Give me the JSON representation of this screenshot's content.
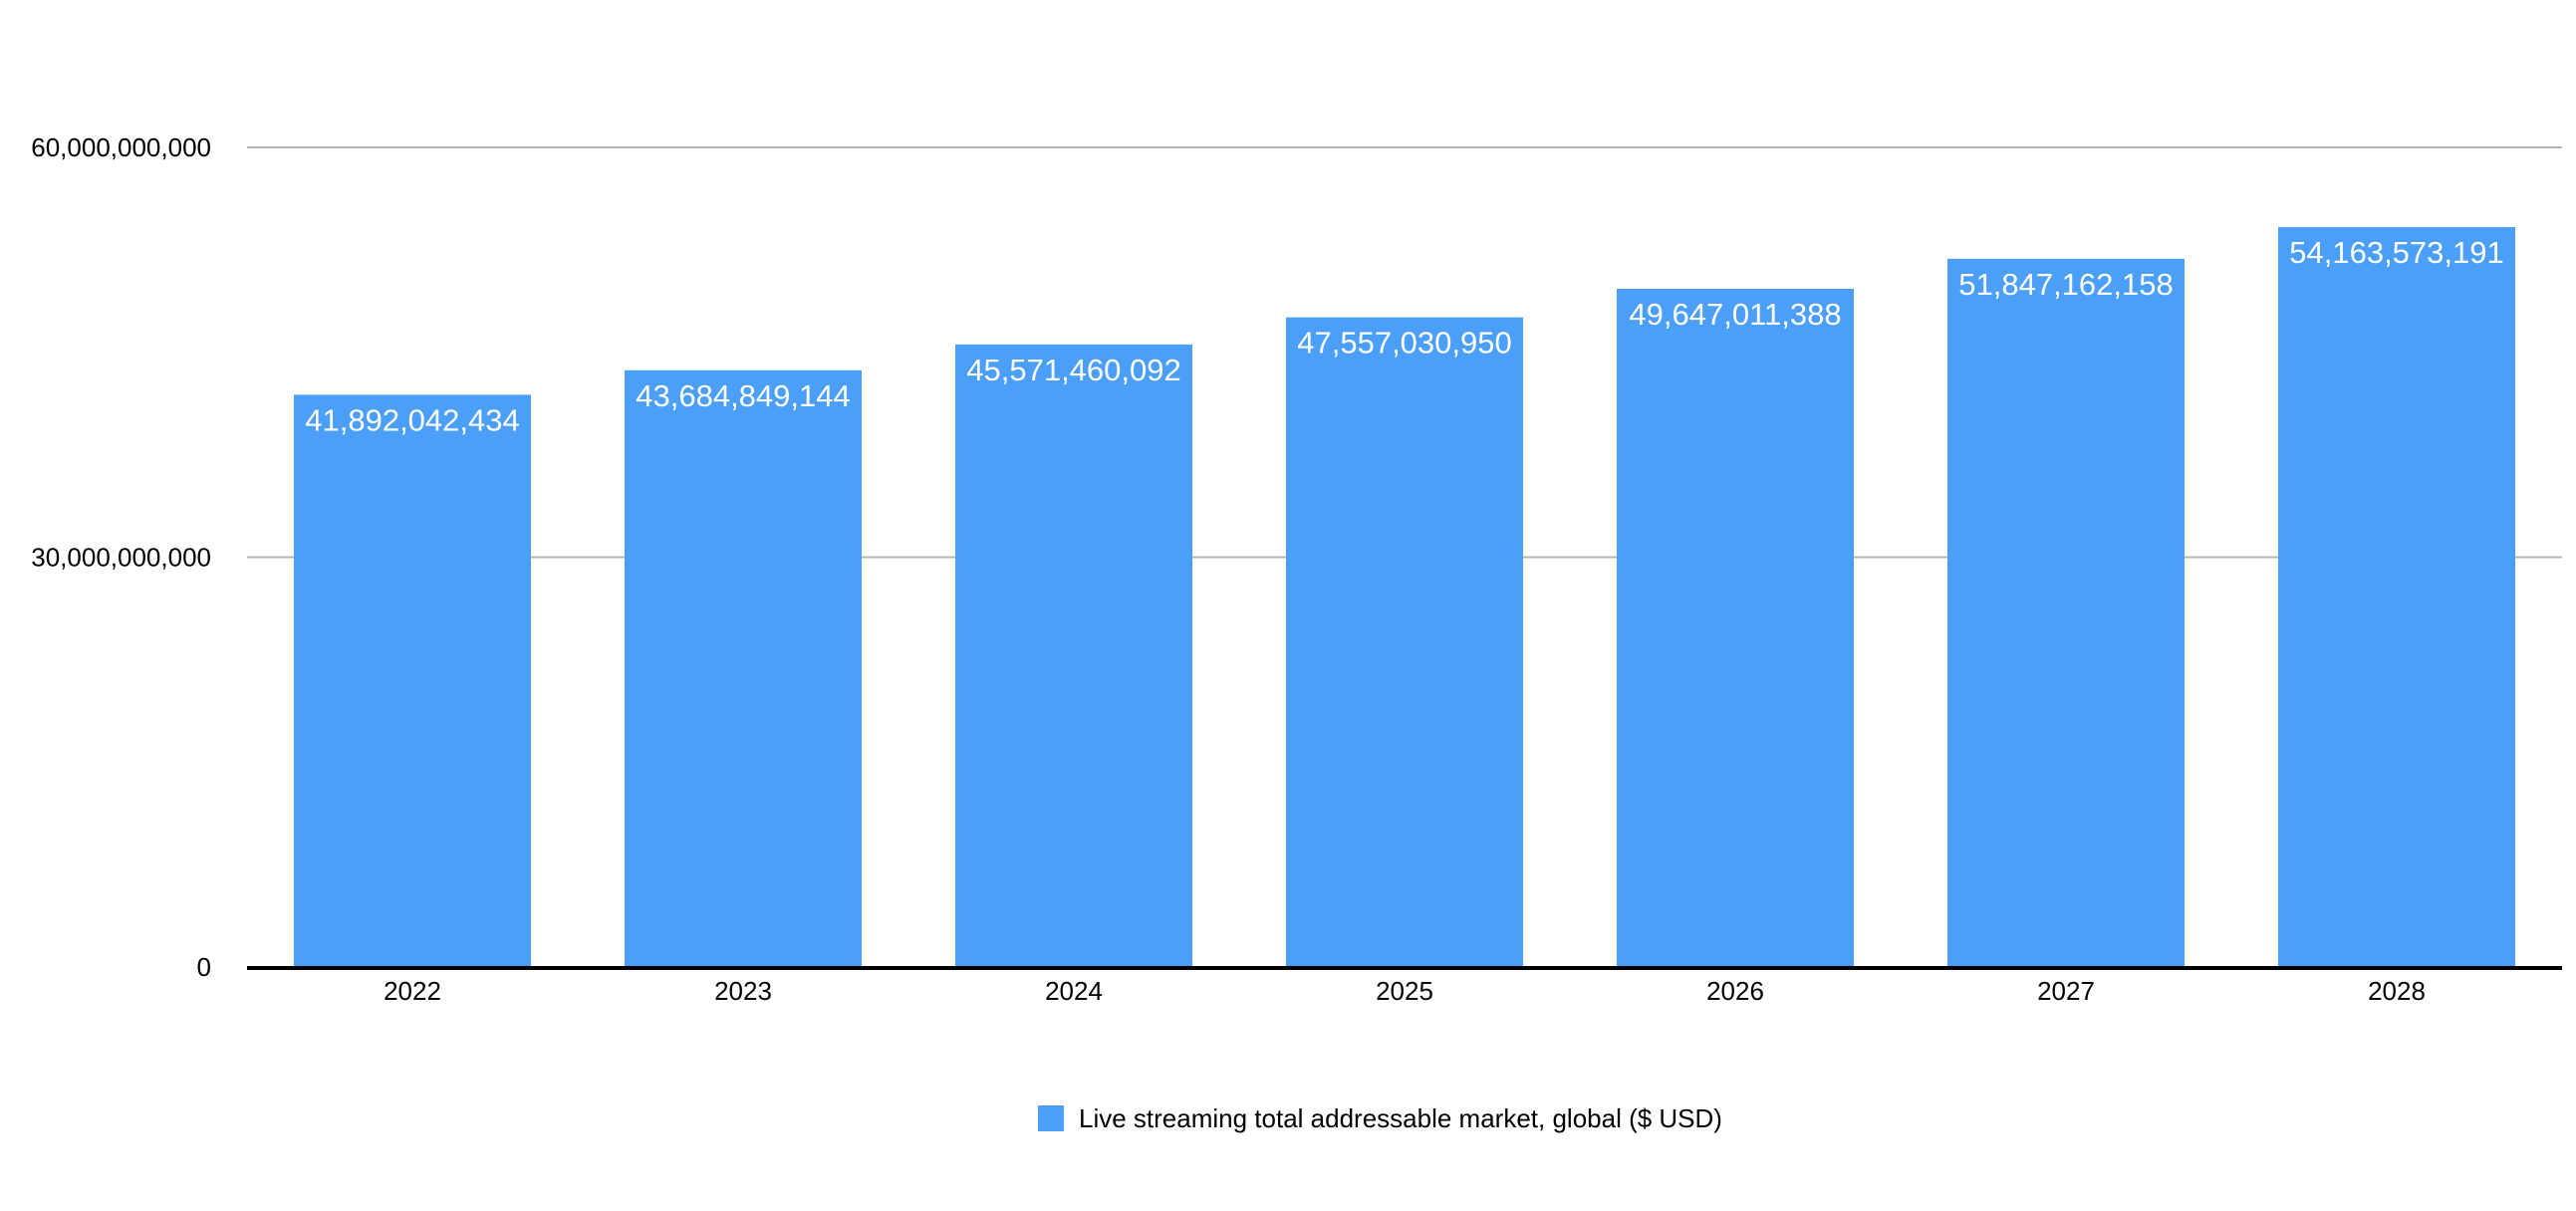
{
  "chart_data": {
    "type": "bar",
    "categories": [
      "2022",
      "2023",
      "2024",
      "2025",
      "2026",
      "2027",
      "2028"
    ],
    "series": [
      {
        "name": "Live streaming total addressable market, global ($ USD)",
        "values": [
          41892042434,
          43684849144,
          45571460092,
          47557030950,
          49647011388,
          51847162158,
          54163573191
        ],
        "data_labels": [
          "41,892,042,434",
          "43,684,849,144",
          "45,571,460,092",
          "47,557,030,950",
          "49,647,011,388",
          "51,847,162,158",
          "54,163,573,191"
        ],
        "color": "#4b9ff8"
      }
    ],
    "y_ticks": [
      0,
      30000000000,
      60000000000
    ],
    "y_tick_labels": [
      "0",
      "30,000,000,000",
      "60,000,000,000"
    ],
    "ylim": [
      0,
      60000000000
    ],
    "grid": true,
    "legend_position": "bottom"
  }
}
